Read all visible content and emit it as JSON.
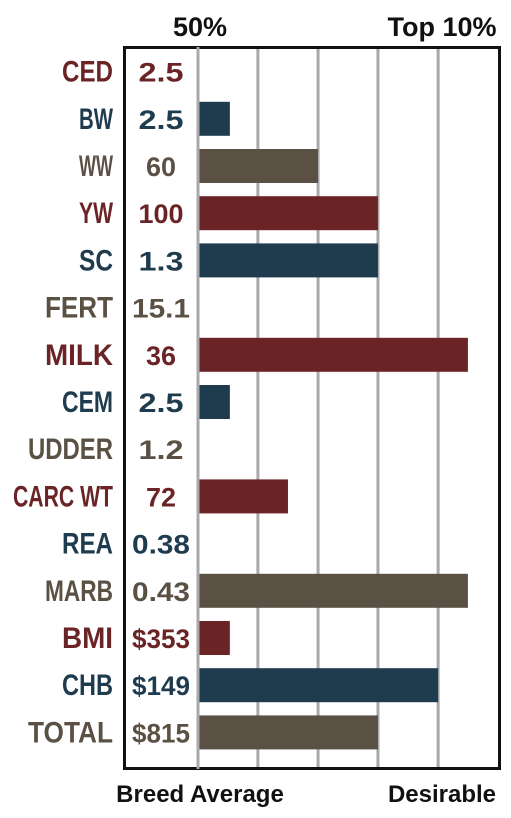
{
  "chart_data": {
    "type": "bar",
    "orientation": "horizontal",
    "title": "",
    "top_labels": [
      "50%",
      "Top 10%"
    ],
    "bottom_labels": [
      "Breed Average",
      "Desirable"
    ],
    "grid": true,
    "xlim": [
      0,
      100
    ],
    "gridlines_at": [
      0,
      20.3,
      40.7,
      61.0,
      81.4,
      100
    ],
    "rows": [
      {
        "trait": "CED",
        "value_label": "2.5",
        "bar": 0,
        "color": "#6b2426"
      },
      {
        "trait": "BW",
        "value_label": "2.5",
        "bar": 10.8,
        "color": "#1f3b4e"
      },
      {
        "trait": "WW",
        "value_label": "60",
        "bar": 40.7,
        "color": "#5a5144"
      },
      {
        "trait": "YW",
        "value_label": "100",
        "bar": 61.0,
        "color": "#6b2426"
      },
      {
        "trait": "SC",
        "value_label": "1.3",
        "bar": 61.0,
        "color": "#1f3b4e"
      },
      {
        "trait": "FERT",
        "value_label": "15.1",
        "bar": 0,
        "color": "#5a5144"
      },
      {
        "trait": "MILK",
        "value_label": "36",
        "bar": 91.5,
        "color": "#6b2426"
      },
      {
        "trait": "CEM",
        "value_label": "2.5",
        "bar": 10.8,
        "color": "#1f3b4e"
      },
      {
        "trait": "UDDER",
        "value_label": "1.2",
        "bar": 0,
        "color": "#5a5144"
      },
      {
        "trait": "CARC WT",
        "value_label": "72",
        "bar": 30.5,
        "color": "#6b2426"
      },
      {
        "trait": "REA",
        "value_label": "0.38",
        "bar": 0,
        "color": "#1f3b4e"
      },
      {
        "trait": "MARB",
        "value_label": "0.43",
        "bar": 91.5,
        "color": "#5a5144"
      },
      {
        "trait": "BMI",
        "value_label": "$353",
        "bar": 10.8,
        "color": "#6b2426"
      },
      {
        "trait": "CHB",
        "value_label": "$149",
        "bar": 81.4,
        "color": "#1f3b4e"
      },
      {
        "trait": "TOTAL",
        "value_label": "$815",
        "bar": 61.0,
        "color": "#5a5144"
      }
    ]
  }
}
